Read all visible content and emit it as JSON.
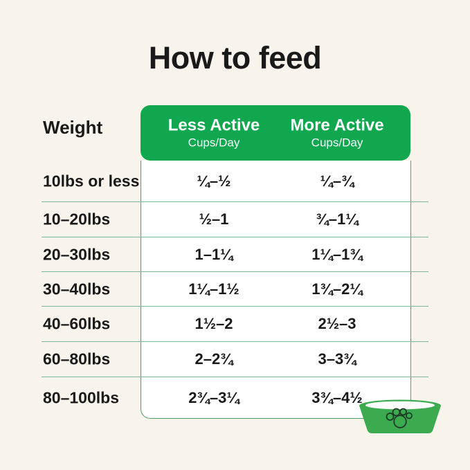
{
  "title": "How to feed",
  "table": {
    "weight_header": "Weight",
    "columns": [
      {
        "label": "Less Active",
        "sublabel": "Cups/Day"
      },
      {
        "label": "More Active",
        "sublabel": "Cups/Day"
      }
    ],
    "rows": [
      {
        "weight": "10lbs or less",
        "less_active": "¼–½",
        "more_active": "¼–¾"
      },
      {
        "weight": "10–20lbs",
        "less_active": "½–1",
        "more_active": "¾–1¼"
      },
      {
        "weight": "20–30lbs",
        "less_active": "1–1¼",
        "more_active": "1¼–1¾"
      },
      {
        "weight": "30–40lbs",
        "less_active": "1¼–1½",
        "more_active": "1¾–2¼"
      },
      {
        "weight": "40–60lbs",
        "less_active": "1½–2",
        "more_active": "2½–3"
      },
      {
        "weight": "60–80lbs",
        "less_active": "2–2¾",
        "more_active": "3–3¾"
      },
      {
        "weight": "80–100lbs",
        "less_active": "2¾–3¼",
        "more_active": "3¾–4½"
      }
    ]
  },
  "icons": {
    "bowl": "dog-bowl-icon",
    "paw": "paw-print-icon"
  },
  "colors": {
    "background": "#F8F4EC",
    "header_green": "#10A74F",
    "bowl_green": "#3CAB50",
    "row_line_green": "#7DB694",
    "table_border_green": "#4AA06B",
    "text": "#1A1A1A",
    "header_text": "#FFFFFF"
  }
}
